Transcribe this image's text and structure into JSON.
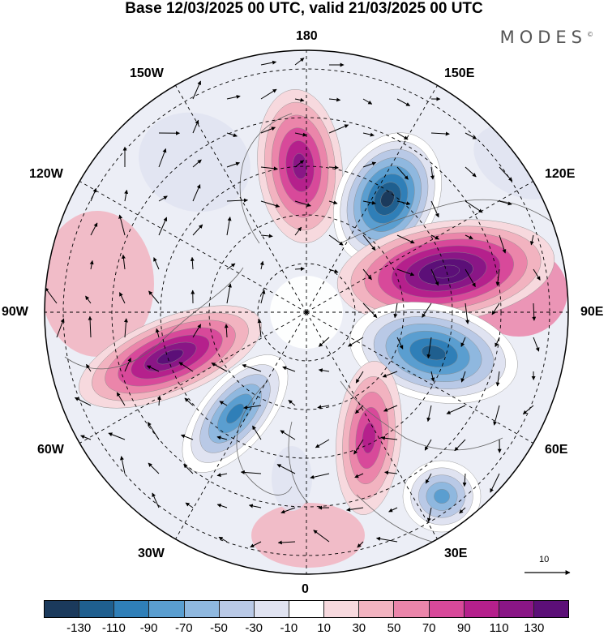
{
  "title": "Base 12/03/2025 00 UTC, valid 21/03/2025 00 UTC",
  "brand": "MODES",
  "brand_mark": "©",
  "longitude_labels": {
    "lon_180": "180",
    "lon_150E": "150E",
    "lon_120E": "120E",
    "lon_90E": "90E",
    "lon_60E": "60E",
    "lon_30E": "30E",
    "lon_0": "0",
    "lon_30W": "30W",
    "lon_60W": "60W",
    "lon_90W": "90W",
    "lon_120W": "120W",
    "lon_150W": "150W"
  },
  "reference_vector": {
    "label": "10"
  },
  "colorbar": {
    "ticks": [
      "-130",
      "-110",
      "-90",
      "-70",
      "-50",
      "-30",
      "-10",
      "10",
      "30",
      "50",
      "70",
      "90",
      "110",
      "130"
    ],
    "colors": [
      "#1b3a5c",
      "#1f5f8f",
      "#2f7fb8",
      "#5a9ed0",
      "#8fb8df",
      "#b9c9e6",
      "#e0e3f1",
      "#ffffff",
      "#f7d9de",
      "#f2b3c0",
      "#eb85aa",
      "#d8499a",
      "#b5208c",
      "#8a1686",
      "#5c0f78"
    ]
  },
  "map": {
    "projection": "north polar stereographic",
    "anomalies": [
      {
        "name": "high-pacific",
        "sign": "positive",
        "peak": 90
      },
      {
        "name": "low-east-siberia",
        "sign": "negative",
        "peak": -130
      },
      {
        "name": "high-central-asia",
        "sign": "positive",
        "peak": 130
      },
      {
        "name": "low-siberia",
        "sign": "negative",
        "peak": -110
      },
      {
        "name": "high-north-america",
        "sign": "positive",
        "peak": 110
      },
      {
        "name": "low-greenland",
        "sign": "negative",
        "peak": -90
      },
      {
        "name": "high-scandinavia",
        "sign": "positive",
        "peak": 70
      },
      {
        "name": "low-europe",
        "sign": "negative",
        "peak": -70
      }
    ]
  }
}
